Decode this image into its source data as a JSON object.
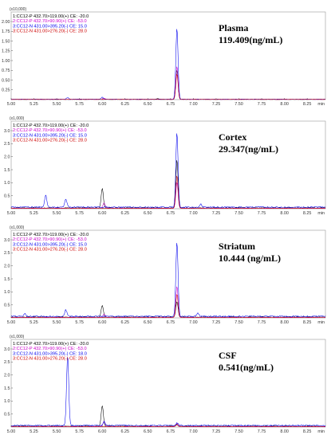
{
  "chart_data": [
    {
      "type": "line",
      "title": "Plasma",
      "subtitle": "119.409(ng/mL)",
      "multiplier": "(x10,000)",
      "xunit": "min",
      "xlim": [
        5.0,
        8.45
      ],
      "ylim": [
        0,
        2.0
      ],
      "xticks": [
        "5.00",
        "5.25",
        "5.50",
        "5.75",
        "6.00",
        "6.25",
        "6.50",
        "6.75",
        "7.00",
        "7.25",
        "7.50",
        "7.75",
        "8.00",
        "8.25"
      ],
      "yticks": [
        "0.25",
        "0.50",
        "0.75",
        "1.00",
        "1.25",
        "1.50",
        "1.75",
        "2.00"
      ],
      "grid": false,
      "legend_position": "top-left",
      "series": [
        {
          "name": "1:CC12-P 432.70>119.00(+) CE: -20.0",
          "color": "#000000",
          "peaks": [
            [
              6.61,
              0.02
            ],
            [
              6.82,
              0.75
            ]
          ],
          "baseline": 0.005
        },
        {
          "name": "2:CC12-P 432.70>90.90(+) CE: -53.0",
          "color": "#cc00cc",
          "peaks": [
            [
              6.02,
              0.03
            ],
            [
              6.82,
              0.85
            ]
          ],
          "baseline": 0.005
        },
        {
          "name": "3:CC12-N 431.00>395.20(-) CE: 15.0",
          "color": "#0000ee",
          "peaks": [
            [
              5.62,
              0.04
            ],
            [
              6.0,
              0.05
            ],
            [
              6.82,
              1.82
            ]
          ],
          "baseline": 0.01
        },
        {
          "name": "3:CC12-N 431.00>276.20(-) CE: 28.0",
          "color": "#cc0000",
          "peaks": [
            [
              6.82,
              0.65
            ]
          ],
          "baseline": 0.005
        }
      ]
    },
    {
      "type": "line",
      "title": "Cortex",
      "subtitle": "29.347(ng/mL)",
      "multiplier": "(x1,000)",
      "xunit": "min",
      "xlim": [
        5.0,
        8.45
      ],
      "ylim": [
        0,
        3.0
      ],
      "xticks": [
        "5.00",
        "5.25",
        "5.50",
        "5.75",
        "6.00",
        "6.25",
        "6.50",
        "6.75",
        "7.00",
        "7.25",
        "7.50",
        "7.75",
        "8.00",
        "8.25"
      ],
      "yticks": [
        "0.5",
        "1.0",
        "1.5",
        "2.0",
        "2.5",
        "3.0"
      ],
      "grid": false,
      "legend_position": "top-left",
      "series": [
        {
          "name": "1:CC12-P 432.70>119.00(+) CE: -20.0",
          "color": "#000000",
          "peaks": [
            [
              6.0,
              0.75
            ],
            [
              6.82,
              1.85
            ]
          ],
          "baseline": 0.03
        },
        {
          "name": "2:CC12-P 432.70>90.90(+) CE: -53.0",
          "color": "#cc00cc",
          "peaks": [
            [
              6.02,
              0.2
            ],
            [
              6.82,
              1.0
            ]
          ],
          "baseline": 0.02
        },
        {
          "name": "3:CC12-N 431.00>395.20(-) CE: 15.0",
          "color": "#0000ee",
          "peaks": [
            [
              5.38,
              0.45
            ],
            [
              5.6,
              0.3
            ],
            [
              6.82,
              2.85
            ],
            [
              7.08,
              0.12
            ]
          ],
          "baseline": 0.06
        },
        {
          "name": "3:CC12-N 431.00>276.20(-) CE: 28.0",
          "color": "#cc0000",
          "peaks": [
            [
              6.82,
              1.25
            ]
          ],
          "baseline": 0.02
        }
      ]
    },
    {
      "type": "line",
      "title": "Striatum",
      "subtitle": "10.444 (ng/mL)",
      "multiplier": "(x1,000)",
      "xunit": "min",
      "xlim": [
        5.0,
        8.45
      ],
      "ylim": [
        0,
        3.0
      ],
      "xticks": [
        "5.00",
        "5.25",
        "5.50",
        "5.75",
        "6.00",
        "6.25",
        "6.50",
        "6.75",
        "7.00",
        "7.25",
        "7.50",
        "7.75",
        "8.00",
        "8.25"
      ],
      "yticks": [
        "0.5",
        "1.0",
        "1.5",
        "2.0",
        "2.5",
        "3.0"
      ],
      "grid": false,
      "legend_position": "top-left",
      "series": [
        {
          "name": "1:CC12-P 432.70>119.00(+) CE: -20.0",
          "color": "#000000",
          "peaks": [
            [
              6.0,
              0.45
            ],
            [
              6.82,
              0.6
            ]
          ],
          "baseline": 0.03
        },
        {
          "name": "2:CC12-P 432.70>90.90(+) CE: -53.0",
          "color": "#cc00cc",
          "peaks": [
            [
              6.02,
              0.12
            ],
            [
              6.82,
              1.2
            ]
          ],
          "baseline": 0.02
        },
        {
          "name": "3:CC12-N 431.00>395.20(-) CE: 15.0",
          "color": "#0000ee",
          "peaks": [
            [
              5.15,
              0.1
            ],
            [
              5.6,
              0.25
            ],
            [
              6.82,
              2.85
            ],
            [
              7.05,
              0.12
            ]
          ],
          "baseline": 0.06
        },
        {
          "name": "3:CC12-N 431.00>276.20(-) CE: 28.0",
          "color": "#cc0000",
          "peaks": [
            [
              6.82,
              0.9
            ]
          ],
          "baseline": 0.02
        }
      ]
    },
    {
      "type": "line",
      "title": "CSF",
      "subtitle": "0.541(ng/mL)",
      "multiplier": "(x1,000)",
      "xunit": "min",
      "xlim": [
        5.0,
        8.45
      ],
      "ylim": [
        0,
        3.0
      ],
      "xticks": [
        "5.00",
        "5.25",
        "5.50",
        "5.75",
        "6.00",
        "6.25",
        "6.50",
        "6.75",
        "7.00",
        "7.25",
        "7.50",
        "7.75",
        "8.00",
        "8.25"
      ],
      "yticks": [
        "0.5",
        "1.0",
        "1.5",
        "2.0",
        "2.5",
        "3.0"
      ],
      "grid": false,
      "legend_position": "top-left",
      "series": [
        {
          "name": "1:CC12-P 432.70>119.00(+) CE: -20.0",
          "color": "#000000",
          "peaks": [
            [
              6.0,
              0.8
            ],
            [
              6.82,
              0.08
            ]
          ],
          "baseline": 0.03
        },
        {
          "name": "2:CC12-P 432.70>90.90(+) CE: -53.0",
          "color": "#cc00cc",
          "peaks": [
            [
              6.02,
              0.2
            ],
            [
              6.82,
              0.12
            ]
          ],
          "baseline": 0.02
        },
        {
          "name": "3:CC12-N 431.00>395.20(-) CE: 18.0",
          "color": "#0000ee",
          "peaks": [
            [
              5.62,
              2.7
            ],
            [
              6.02,
              0.15
            ],
            [
              6.82,
              0.1
            ]
          ],
          "baseline": 0.06
        },
        {
          "name": "3:CC12-N 431.00>276.20(-) CE: 28.0",
          "color": "#cc0000",
          "peaks": [
            [
              6.82,
              0.06
            ]
          ],
          "baseline": 0.02
        }
      ]
    }
  ]
}
